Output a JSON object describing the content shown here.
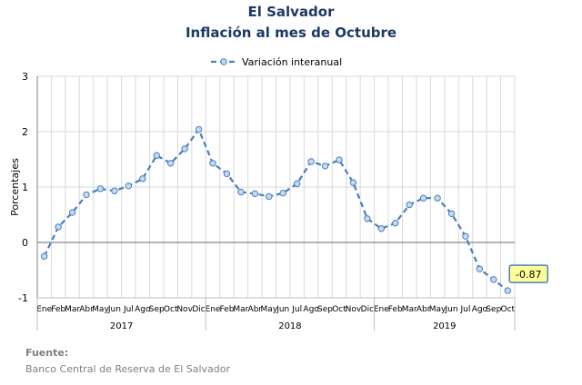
{
  "title": "El Salvador",
  "subtitle": "Inflación al mes de Octubre",
  "source_label": "Fuente:",
  "source_text": "Banco Central de Reserva de El Salvador",
  "chart_data": {
    "type": "line",
    "ylabel": "Porcentajes",
    "ylim": [
      -1,
      3
    ],
    "yticks": [
      -1,
      0,
      1,
      2,
      3
    ],
    "grid": true,
    "legend_position": "top-center",
    "series": [
      {
        "name": "Variación interanual",
        "color": "#4A7EBB",
        "style": "dashed-with-circle-markers",
        "values": [
          -0.25,
          0.28,
          0.54,
          0.86,
          0.97,
          0.93,
          1.02,
          1.15,
          1.57,
          1.43,
          1.69,
          2.04,
          1.43,
          1.24,
          0.91,
          0.88,
          0.83,
          0.89,
          1.06,
          1.46,
          1.38,
          1.49,
          1.08,
          0.43,
          0.25,
          0.35,
          0.68,
          0.8,
          0.8,
          0.52,
          0.11,
          -0.48,
          -0.67,
          -0.87
        ]
      }
    ],
    "months": [
      "Ene",
      "Feb",
      "Mar",
      "Abr",
      "May",
      "Jun",
      "Jul",
      "Ago",
      "Sep",
      "Oct",
      "Nov",
      "Dic",
      "Ene",
      "Feb",
      "Mar",
      "Abr",
      "May",
      "Jun",
      "Jul",
      "Ago",
      "Sep",
      "Oct",
      "Nov",
      "Dic",
      "Ene",
      "Feb",
      "Mar",
      "Abr",
      "May",
      "Jun",
      "Jul",
      "Ago",
      "Sep",
      "Oct"
    ],
    "years": [
      {
        "label": "2017",
        "count": 12
      },
      {
        "label": "2018",
        "count": 12
      },
      {
        "label": "2019",
        "count": 10
      }
    ],
    "callout": {
      "index": 33,
      "text": "-0.87"
    }
  }
}
